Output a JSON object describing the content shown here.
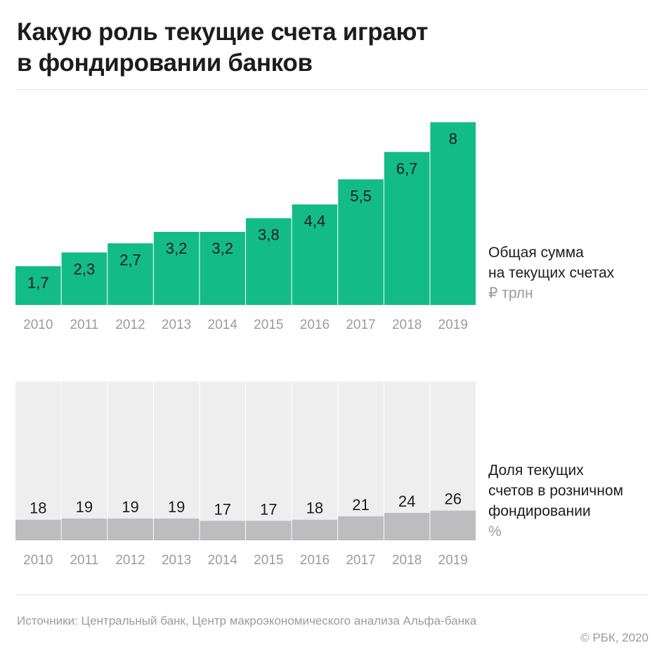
{
  "title_lines": [
    "Какую роль текущие счета играют",
    "в фондировании банков"
  ],
  "chart_data": [
    {
      "type": "bar",
      "categories": [
        "2010",
        "2011",
        "2012",
        "2013",
        "2014",
        "2015",
        "2016",
        "2017",
        "2018",
        "2019"
      ],
      "series": [
        {
          "name": "Общая сумма на текущих счетах",
          "values": [
            1.7,
            2.3,
            2.7,
            3.2,
            3.2,
            3.8,
            4.4,
            5.5,
            6.7,
            8
          ]
        }
      ],
      "data_labels": [
        "1,7",
        "2,3",
        "2,7",
        "3,2",
        "3,2",
        "3,8",
        "4,4",
        "5,5",
        "6,7",
        "8"
      ],
      "label_lines": [
        "Общая сумма",
        "на текущих счетах"
      ],
      "unit": "₽ трлн",
      "ylim": [
        0,
        8
      ],
      "color": "#13bb87",
      "grid": false
    },
    {
      "type": "bar",
      "categories": [
        "2010",
        "2011",
        "2012",
        "2013",
        "2014",
        "2015",
        "2016",
        "2017",
        "2018",
        "2019"
      ],
      "series": [
        {
          "name": "Доля текущих счетов в розничном фондировании",
          "values": [
            18,
            19,
            19,
            19,
            17,
            17,
            18,
            21,
            24,
            26
          ]
        }
      ],
      "data_labels": [
        "18",
        "19",
        "19",
        "19",
        "17",
        "17",
        "18",
        "21",
        "24",
        "26"
      ],
      "label_lines": [
        "Доля текущих",
        "счетов в розничном",
        "фондировании"
      ],
      "unit": "%",
      "ylim": [
        0,
        100
      ],
      "color": "#bdbcbe",
      "background_color": "#eeeeee",
      "grid": false
    }
  ],
  "source": "Источники: Центральный банк, Центр макроэкономического анализа Альфа-банка",
  "copyright": "© РБК, 2020",
  "colors": {
    "text": "#1c1c1c",
    "muted": "#9b9b9b",
    "rule": "#e2e2e2"
  }
}
